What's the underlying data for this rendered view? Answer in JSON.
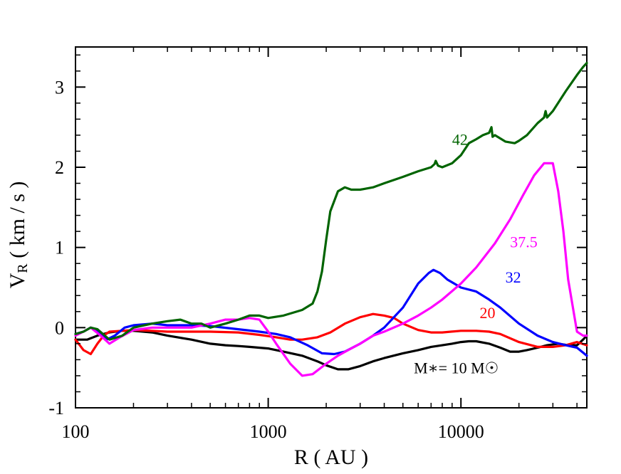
{
  "chart_data": {
    "type": "line",
    "xlabel": "R ( AU )",
    "ylabel": "VR ( km / s )",
    "ylabel_main": "V",
    "ylabel_sub": "R",
    "ylabel_rest": " ( km / s )",
    "x_scale": "log",
    "xlim": [
      100,
      45000
    ],
    "ylim": [
      -1,
      3.5
    ],
    "x_ticks": [
      {
        "value": 100,
        "label": "100"
      },
      {
        "value": 1000,
        "label": "1000"
      },
      {
        "value": 10000,
        "label": "10000"
      }
    ],
    "y_ticks": [
      {
        "value": -1,
        "label": "-1"
      },
      {
        "value": 0,
        "label": "0"
      },
      {
        "value": 1,
        "label": "1"
      },
      {
        "value": 2,
        "label": "2"
      },
      {
        "value": 3,
        "label": "3"
      }
    ],
    "grid": false,
    "series": [
      {
        "name": "M∗= 10 M☉",
        "color": "#000000",
        "x": [
          100,
          115,
          130,
          150,
          175,
          200,
          250,
          300,
          400,
          500,
          600,
          700,
          800,
          1000,
          1200,
          1500,
          1800,
          2000,
          2300,
          2600,
          3000,
          3500,
          4000,
          5000,
          6000,
          7000,
          8000,
          9000,
          10000,
          11000,
          12000,
          14000,
          16000,
          18000,
          20000,
          22000,
          25000,
          28000,
          32000,
          36000,
          40000,
          43000,
          45000
        ],
        "values": [
          -0.15,
          -0.15,
          -0.1,
          -0.06,
          -0.04,
          -0.04,
          -0.06,
          -0.1,
          -0.15,
          -0.2,
          -0.22,
          -0.23,
          -0.24,
          -0.26,
          -0.3,
          -0.35,
          -0.42,
          -0.47,
          -0.52,
          -0.52,
          -0.48,
          -0.42,
          -0.38,
          -0.32,
          -0.28,
          -0.24,
          -0.22,
          -0.2,
          -0.18,
          -0.17,
          -0.17,
          -0.2,
          -0.25,
          -0.3,
          -0.3,
          -0.28,
          -0.25,
          -0.22,
          -0.2,
          -0.22,
          -0.22,
          -0.15,
          -0.1
        ]
      },
      {
        "name": "20",
        "color": "#ff0000",
        "x": [
          100,
          110,
          120,
          130,
          140,
          150,
          175,
          200,
          250,
          300,
          400,
          500,
          700,
          900,
          1100,
          1300,
          1500,
          1800,
          2100,
          2500,
          3000,
          3500,
          4000,
          4500,
          5000,
          6000,
          7000,
          8000,
          10000,
          12000,
          14000,
          16000,
          20000,
          25000,
          30000,
          35000,
          40000,
          45000
        ],
        "values": [
          -0.15,
          -0.28,
          -0.33,
          -0.2,
          -0.1,
          -0.05,
          -0.04,
          -0.03,
          -0.04,
          -0.05,
          -0.05,
          -0.05,
          -0.06,
          -0.09,
          -0.12,
          -0.15,
          -0.15,
          -0.12,
          -0.06,
          0.05,
          0.13,
          0.17,
          0.15,
          0.12,
          0.05,
          -0.03,
          -0.06,
          -0.06,
          -0.04,
          -0.04,
          -0.05,
          -0.08,
          -0.18,
          -0.24,
          -0.24,
          -0.22,
          -0.18,
          -0.22
        ]
      },
      {
        "name": "32",
        "color": "#0000ff",
        "x": [
          100,
          110,
          120,
          130,
          145,
          160,
          180,
          200,
          250,
          300,
          400,
          500,
          700,
          900,
          1100,
          1300,
          1600,
          1900,
          2200,
          2500,
          3000,
          3500,
          4000,
          5000,
          6000,
          6800,
          7200,
          7800,
          8500,
          10000,
          12000,
          14000,
          16000,
          20000,
          25000,
          30000,
          35000,
          40000,
          45000
        ],
        "values": [
          -0.08,
          -0.05,
          0.0,
          -0.05,
          -0.15,
          -0.1,
          0.0,
          0.03,
          0.05,
          0.03,
          0.03,
          0.02,
          -0.02,
          -0.05,
          -0.08,
          -0.12,
          -0.22,
          -0.32,
          -0.33,
          -0.3,
          -0.2,
          -0.1,
          0.0,
          0.25,
          0.55,
          0.68,
          0.72,
          0.68,
          0.6,
          0.5,
          0.45,
          0.35,
          0.25,
          0.05,
          -0.1,
          -0.18,
          -0.22,
          -0.25,
          -0.35
        ]
      },
      {
        "name": "37.5",
        "color": "#ff00ff",
        "x": [
          100,
          110,
          120,
          135,
          150,
          170,
          200,
          250,
          300,
          400,
          500,
          600,
          700,
          800,
          900,
          1000,
          1100,
          1300,
          1500,
          1700,
          2000,
          2300,
          2600,
          3000,
          3500,
          4000,
          5000,
          6000,
          7000,
          8000,
          10000,
          12000,
          15000,
          18000,
          21000,
          24000,
          27000,
          30000,
          32000,
          34000,
          36000,
          40000,
          43000,
          45000
        ],
        "values": [
          -0.1,
          -0.05,
          0.0,
          -0.1,
          -0.2,
          -0.12,
          -0.03,
          0.0,
          0.0,
          0.0,
          0.05,
          0.1,
          0.1,
          0.12,
          0.1,
          -0.05,
          -0.2,
          -0.45,
          -0.6,
          -0.58,
          -0.45,
          -0.35,
          -0.28,
          -0.2,
          -0.1,
          -0.05,
          0.05,
          0.15,
          0.25,
          0.35,
          0.55,
          0.75,
          1.05,
          1.35,
          1.65,
          1.9,
          2.05,
          2.05,
          1.7,
          1.2,
          0.6,
          -0.05,
          -0.1,
          -0.1
        ]
      },
      {
        "name": "42",
        "color": "#006400",
        "x": [
          100,
          110,
          120,
          130,
          150,
          175,
          200,
          250,
          300,
          350,
          400,
          450,
          500,
          600,
          700,
          800,
          900,
          1000,
          1200,
          1500,
          1700,
          1800,
          1900,
          2000,
          2100,
          2300,
          2500,
          2700,
          3000,
          3500,
          4000,
          5000,
          6000,
          7000,
          7300,
          7400,
          7600,
          8000,
          9000,
          10000,
          11000,
          12000,
          13000,
          14000,
          14400,
          14600,
          15000,
          17000,
          19000,
          20000,
          22000,
          25000,
          27000,
          27500,
          28000,
          30000,
          35000,
          40000,
          43000,
          45000
        ],
        "values": [
          -0.08,
          -0.05,
          0.0,
          -0.02,
          -0.15,
          -0.1,
          0.0,
          0.05,
          0.08,
          0.1,
          0.05,
          0.05,
          0.0,
          0.05,
          0.1,
          0.15,
          0.15,
          0.12,
          0.15,
          0.22,
          0.3,
          0.45,
          0.7,
          1.1,
          1.45,
          1.7,
          1.75,
          1.72,
          1.72,
          1.75,
          1.8,
          1.88,
          1.95,
          2.0,
          2.04,
          2.08,
          2.02,
          2.0,
          2.05,
          2.15,
          2.3,
          2.35,
          2.4,
          2.43,
          2.5,
          2.38,
          2.4,
          2.32,
          2.3,
          2.33,
          2.4,
          2.55,
          2.62,
          2.7,
          2.62,
          2.7,
          2.95,
          3.15,
          3.25,
          3.3
        ]
      }
    ],
    "annotations": [
      {
        "text": "42",
        "color": "#006400",
        "x": 9000,
        "y": 2.28
      },
      {
        "text": "37.5",
        "color": "#ff00ff",
        "x": 18000,
        "y": 1.0
      },
      {
        "text": "32",
        "color": "#0000ff",
        "x": 17000,
        "y": 0.56
      },
      {
        "text": "20",
        "color": "#ff0000",
        "x": 12500,
        "y": 0.12
      },
      {
        "text": "M∗= 10 M☉",
        "color": "#000000",
        "x": 5700,
        "y": -0.57
      }
    ]
  }
}
